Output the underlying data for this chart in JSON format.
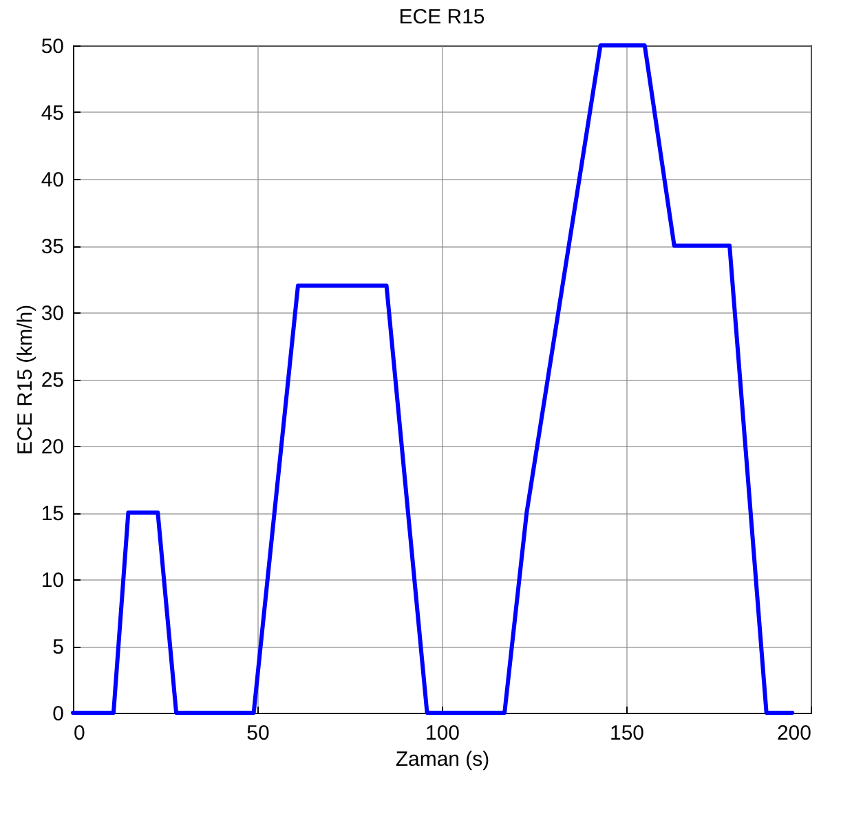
{
  "chart_data": {
    "type": "line",
    "title": "ECE R15",
    "xlabel": "Zaman (s)",
    "ylabel": "ECE R15 (km/h)",
    "x": [
      0,
      11,
      15,
      23,
      28,
      49,
      61,
      85,
      96,
      117,
      123,
      143,
      155,
      163,
      178,
      188,
      195
    ],
    "series": [
      {
        "color": "#0000ff",
        "values": [
          0,
          0,
          15,
          15,
          0,
          0,
          32,
          32,
          0,
          0,
          15,
          50,
          50,
          35,
          35,
          0,
          0
        ]
      }
    ],
    "xlim": [
      0,
      200
    ],
    "xticks": [
      0,
      50,
      100,
      150,
      200
    ],
    "ylim": [
      0,
      50
    ],
    "yticks": [
      0,
      5,
      10,
      15,
      20,
      25,
      30,
      35,
      40,
      45,
      50
    ],
    "grid": true,
    "line_style": "solid",
    "marker": "none"
  }
}
